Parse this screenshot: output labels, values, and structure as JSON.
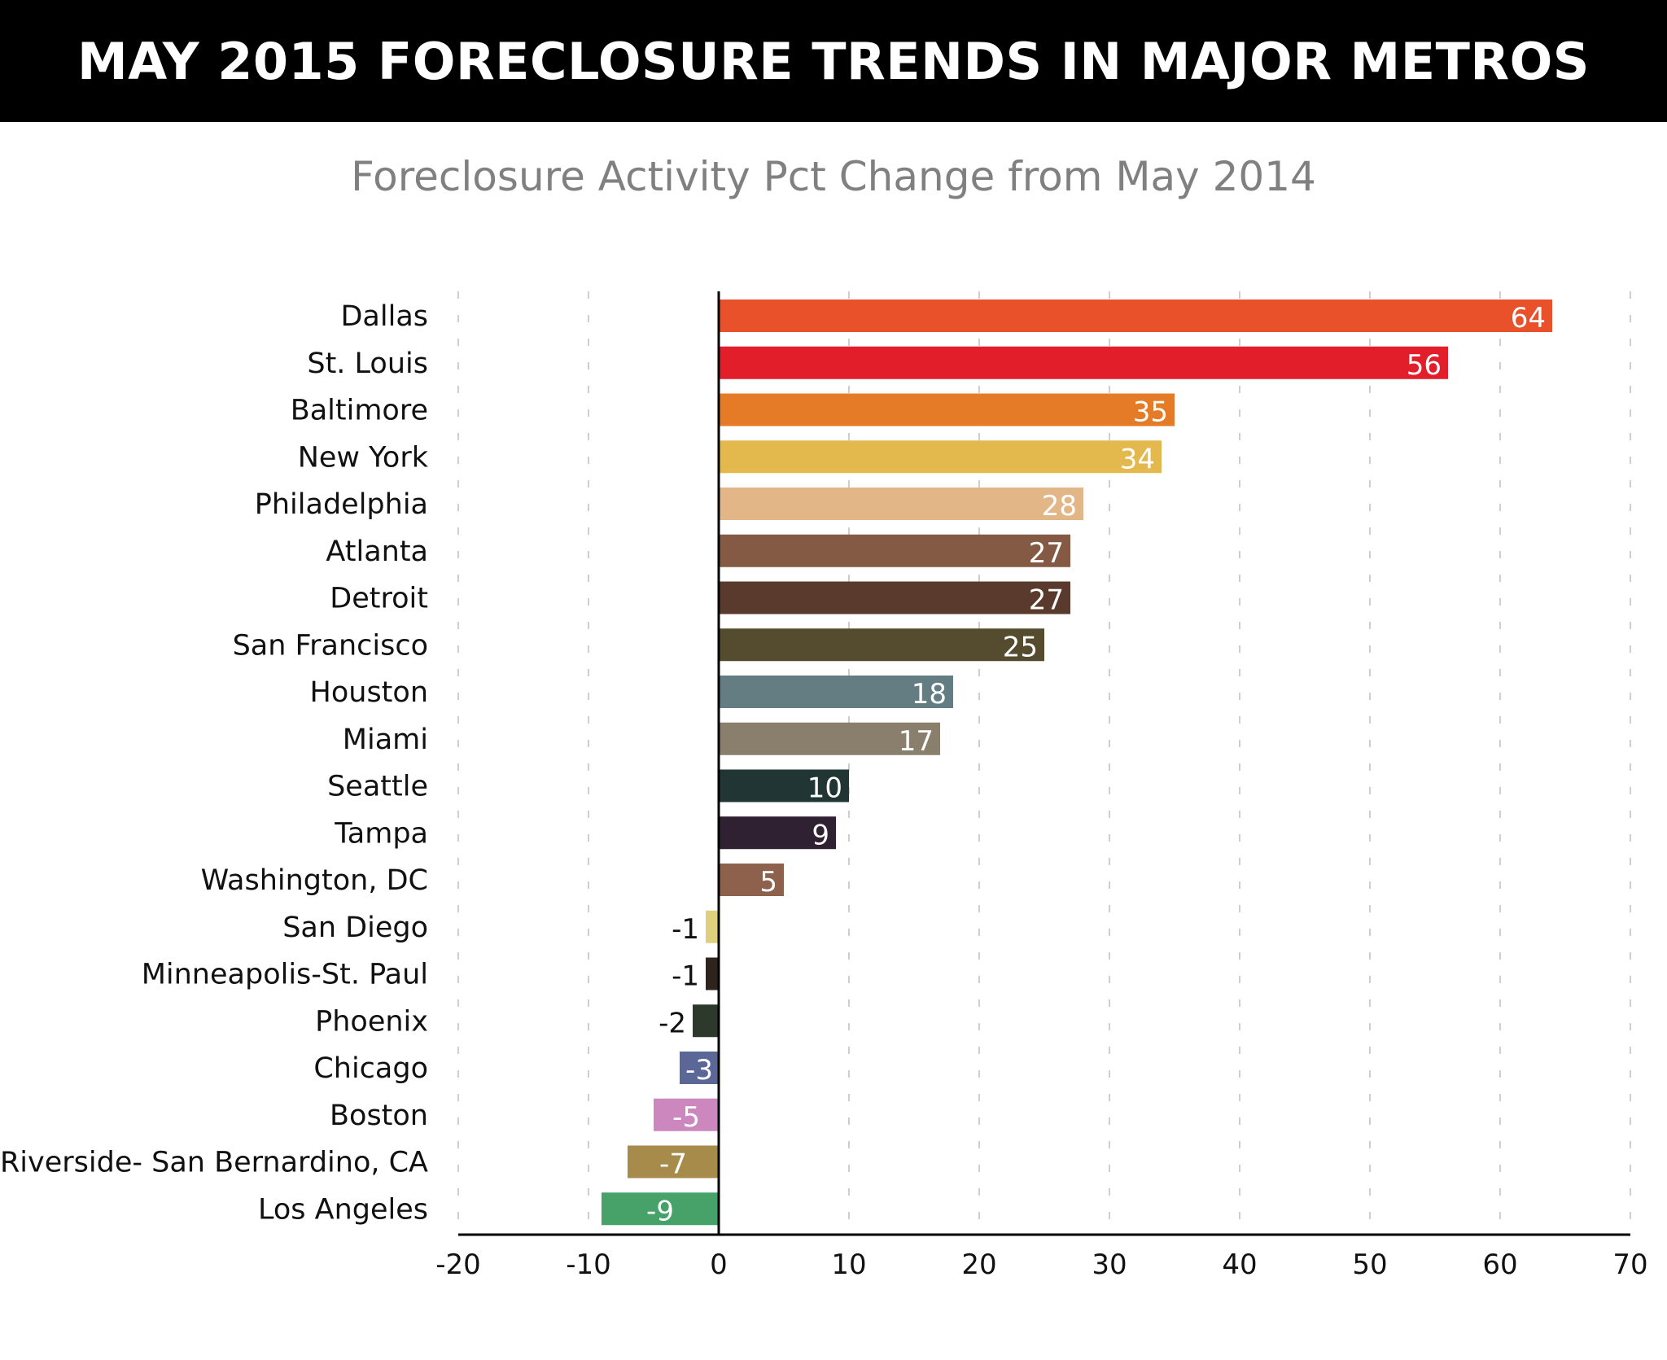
{
  "header": {
    "title": "MAY 2015 FORECLOSURE TRENDS IN MAJOR METROS",
    "subtitle": "Foreclosure Activity Pct Change from May 2014"
  },
  "chart_data": {
    "type": "bar",
    "orientation": "horizontal",
    "title": "MAY 2015 FORECLOSURE TRENDS IN MAJOR METROS",
    "subtitle": "Foreclosure Activity Pct Change from May 2014",
    "xlabel": "",
    "ylabel": "",
    "xlim": [
      -20,
      70
    ],
    "xticks": [
      -20,
      -10,
      0,
      10,
      20,
      30,
      40,
      50,
      60,
      70
    ],
    "grid": "dashed vertical",
    "categories": [
      "Dallas",
      "St. Louis",
      "Baltimore",
      "New York",
      "Philadelphia",
      "Atlanta",
      "Detroit",
      "San Francisco",
      "Houston",
      "Miami",
      "Seattle",
      "Tampa",
      "Washington, DC",
      "San Diego",
      "Minneapolis-St. Paul",
      "Phoenix",
      "Chicago",
      "Boston",
      "Riverside- San Bernardino, CA",
      "Los Angeles"
    ],
    "values": [
      64,
      56,
      35,
      34,
      28,
      27,
      27,
      25,
      18,
      17,
      10,
      9,
      5,
      -1,
      -1,
      -2,
      -3,
      -5,
      -7,
      -9
    ],
    "colors": [
      "#E8512A",
      "#E31E2B",
      "#E57B26",
      "#E3B94E",
      "#E2B687",
      "#845A45",
      "#5A3A2D",
      "#554B2E",
      "#637D82",
      "#8A7E6D",
      "#213535",
      "#2F2032",
      "#8E614D",
      "#DED07C",
      "#2E241C",
      "#2D3A2B",
      "#5A6797",
      "#CC88BE",
      "#A68B4B",
      "#46A268"
    ]
  }
}
